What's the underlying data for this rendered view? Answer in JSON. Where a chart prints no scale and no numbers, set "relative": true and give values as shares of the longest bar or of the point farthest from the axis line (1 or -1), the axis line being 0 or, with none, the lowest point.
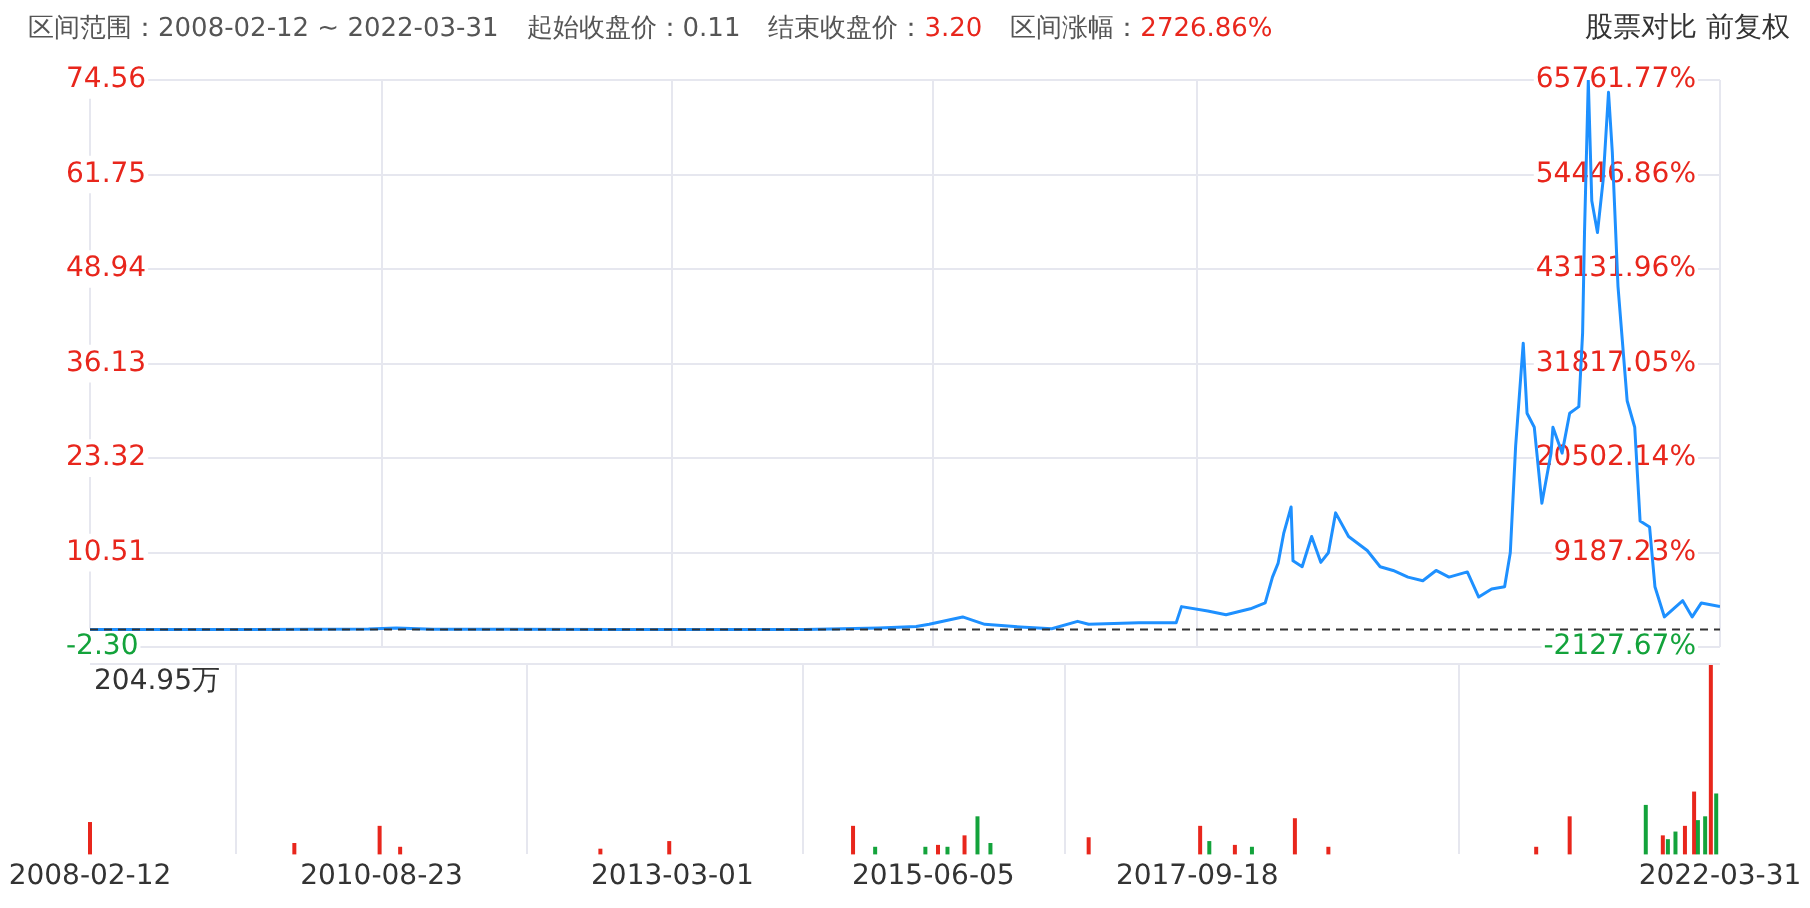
{
  "chart_data": [
    {
      "type": "line",
      "annotations": [
        "区间范围：2008-02-12 ~ 2022-03-31",
        "起始收盘价：0.11",
        "结束收盘价：3.20",
        "区间涨幅：2726.86%",
        "股票对比 前复权"
      ],
      "xlim": [
        "2008-02-12",
        "2022-03-31"
      ],
      "xticks": [
        "2008-02-12",
        "2010-08-23",
        "2013-03-01",
        "2015-06-05",
        "2017-09-18",
        "2022-03-31"
      ],
      "ylim": [
        -2.3,
        74.56
      ],
      "yticks": [
        {
          "value": -2.3,
          "label": "-2.30"
        },
        10.51,
        23.32,
        36.13,
        48.94,
        61.75,
        74.56
      ],
      "y2lim": [
        -2127.67,
        65761.77
      ],
      "y2ticks": [
        {
          "value": -2127.67,
          "label": "-2127.67%"
        },
        {
          "value": 9187.23,
          "label": "9187.23%"
        },
        {
          "value": 20502.14,
          "label": "20502.14%"
        },
        {
          "value": 31817.05,
          "label": "31817.05%"
        },
        {
          "value": 43131.96,
          "label": "43131.96%"
        },
        {
          "value": 54446.86,
          "label": "54446.86%"
        },
        {
          "value": 65761.77,
          "label": "65761.77%"
        }
      ],
      "tick_labels": "y",
      "grid": true,
      "marker": "none",
      "legend": false,
      "ref_lines": [
        {
          "axis": "y",
          "value": 0.11,
          "color": "#333333",
          "line_style": "dashed"
        }
      ],
      "series": [
        {
          "color": "#1e90ff",
          "x": [
            "2008-02-12",
            "2009-06-26",
            "2010-07-13",
            "2010-10-09",
            "2011-02-03",
            "2012-09-13",
            "2014-04-24",
            "2014-08-20",
            "2014-12-15",
            "2015-04-12",
            "2015-05-23",
            "2015-09-06",
            "2015-11-15",
            "2016-02-17",
            "2016-06-14",
            "2016-09-04",
            "2016-10-09",
            "2017-03-17",
            "2017-07-13",
            "2017-07-30",
            "2017-10-21",
            "2017-12-18",
            "2018-03-05",
            "2018-04-21",
            "2018-05-14",
            "2018-06-01",
            "2018-06-19",
            "2018-07-12",
            "2018-07-18",
            "2018-08-16",
            "2018-09-15",
            "2018-10-14",
            "2018-11-07",
            "2018-11-30",
            "2019-01-10",
            "2019-03-10",
            "2019-04-20",
            "2019-05-31",
            "2019-07-17",
            "2019-09-02",
            "2019-10-14",
            "2019-11-24",
            "2020-01-21",
            "2020-02-26",
            "2020-04-07",
            "2020-05-18",
            "2020-06-05",
            "2020-06-22",
            "2020-07-16",
            "2020-07-28",
            "2020-08-20",
            "2020-09-13",
            "2020-10-12",
            "2020-10-18",
            "2020-11-16",
            "2020-12-10",
            "2021-01-08",
            "2021-01-20",
            "2021-01-26",
            "2021-02-07",
            "2021-02-18",
            "2021-03-08",
            "2021-03-26",
            "2021-04-12",
            "2021-04-24",
            "2021-05-12",
            "2021-06-10",
            "2021-07-04",
            "2021-07-21",
            "2021-08-20",
            "2021-09-06",
            "2021-10-06",
            "2021-12-03",
            "2022-01-02",
            "2022-01-31",
            "2022-03-31"
          ],
          "values": [
            0.11,
            0.11,
            0.15,
            0.3,
            0.12,
            0.11,
            0.11,
            0.2,
            0.3,
            0.5,
            0.8,
            1.8,
            0.8,
            0.5,
            0.2,
            1.2,
            0.8,
            1.0,
            1.0,
            3.2,
            2.6,
            2.1,
            2.9,
            3.7,
            7.2,
            9.1,
            13.2,
            16.7,
            9.4,
            8.6,
            12.7,
            9.2,
            10.5,
            15.9,
            12.7,
            10.8,
            8.6,
            8.1,
            7.2,
            6.7,
            8.1,
            7.2,
            7.9,
            4.5,
            5.6,
            5.9,
            10.5,
            25.0,
            38.9,
            29.4,
            27.5,
            17.2,
            24.0,
            27.5,
            24.0,
            29.4,
            30.3,
            40.3,
            53.9,
            74.5,
            58.2,
            53.9,
            61.0,
            72.9,
            64.8,
            46.6,
            31.1,
            27.5,
            14.8,
            14.0,
            5.9,
            1.8,
            4.0,
            1.8,
            3.7,
            3.2
          ]
        }
      ]
    },
    {
      "type": "bar",
      "relative": true,
      "annotations": [
        "204.95万"
      ],
      "tick_labels": "x",
      "grid": "x",
      "legend": false,
      "xlim": [
        "2008-02-12",
        "2022-03-31"
      ],
      "xticks": [
        "2008-02-12",
        "2010-08-23",
        "2013-03-01",
        "2015-06-05",
        "2017-09-18",
        "2022-03-31"
      ],
      "x": [
        "2008-02-12",
        "2009-11-20",
        "2010-08-17",
        "2010-10-21",
        "2012-07-16",
        "2013-02-19",
        "2014-09-24",
        "2014-12-03",
        "2015-05-11",
        "2015-06-20",
        "2015-07-20",
        "2015-09-12",
        "2015-10-23",
        "2015-12-03",
        "2016-10-09",
        "2017-09-27",
        "2017-10-26",
        "2018-01-15",
        "2018-03-10",
        "2018-07-24",
        "2018-11-07",
        "2020-08-26",
        "2020-12-10",
        "2021-08-08",
        "2021-10-01",
        "2021-10-17",
        "2021-11-10",
        "2021-12-10",
        "2022-01-08",
        "2022-01-20",
        "2022-02-12",
        "2022-03-02",
        "2022-03-19"
      ],
      "values": [
        0.17,
        0.06,
        0.15,
        0.04,
        0.03,
        0.07,
        0.15,
        0.04,
        0.04,
        0.05,
        0.04,
        0.1,
        0.2,
        0.06,
        0.09,
        0.15,
        0.07,
        0.05,
        0.04,
        0.19,
        0.04,
        0.04,
        0.2,
        0.26,
        0.1,
        0.08,
        0.12,
        0.15,
        0.33,
        0.18,
        0.2,
        1,
        0.32
      ],
      "colors": [
        "#e8261c",
        "#e8261c",
        "#e8261c",
        "#e8261c",
        "#e8261c",
        "#e8261c",
        "#e8261c",
        "#13a33b",
        "#13a33b",
        "#e8261c",
        "#13a33b",
        "#e8261c",
        "#13a33b",
        "#13a33b",
        "#e8261c",
        "#e8261c",
        "#13a33b",
        "#e8261c",
        "#13a33b",
        "#e8261c",
        "#e8261c",
        "#e8261c",
        "#e8261c",
        "#13a33b",
        "#e8261c",
        "#13a33b",
        "#13a33b",
        "#e8261c",
        "#e8261c",
        "#13a33b",
        "#13a33b",
        "#e8261c",
        "#13a33b"
      ]
    }
  ]
}
